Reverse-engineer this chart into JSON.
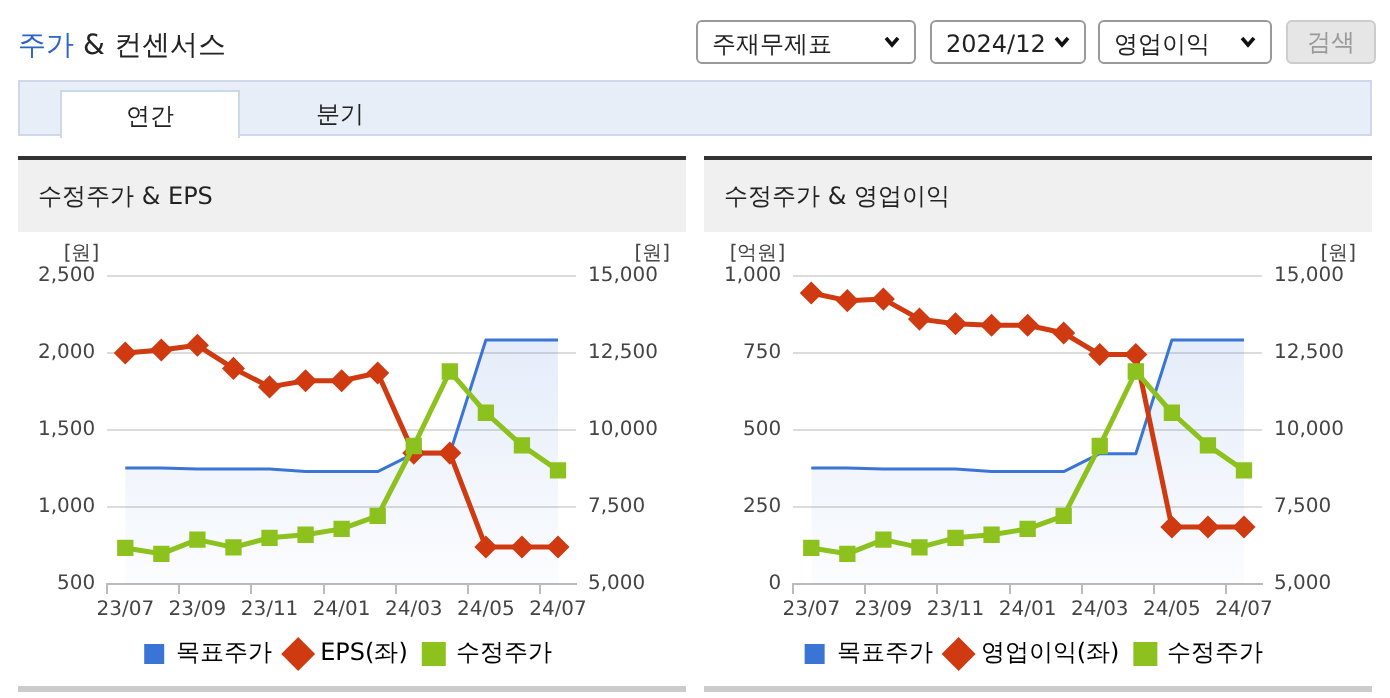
{
  "chart_data": [
    {
      "type": "other",
      "title": "주가 & 컨센서스",
      "annotations": [
        "주재무제표",
        "2024/12",
        "영업이익",
        "검색",
        "연간",
        "분기"
      ]
    },
    {
      "type": "line",
      "title": "수정주가 & EPS",
      "ylabel": "[원]",
      "y2label": "[원]",
      "categories": [
        "23/07",
        null,
        "23/09",
        null,
        "23/11",
        null,
        "24/01",
        null,
        "24/03",
        null,
        "24/05",
        null,
        "24/07"
      ],
      "series": [
        {
          "name": "목표주가",
          "type": "area",
          "axis": "y2",
          "color": "#3a75d6",
          "marker": "none",
          "values": [
            8770,
            8770,
            8730,
            8730,
            8730,
            8650,
            8650,
            8650,
            9230,
            9230,
            12920,
            12920,
            12920
          ]
        },
        {
          "name": "EPS(좌)",
          "type": "line",
          "color": "#d03a10",
          "marker": "diamond",
          "values": [
            2000,
            2020,
            2050,
            1900,
            1780,
            1820,
            1820,
            1870,
            1350,
            1350,
            740,
            740,
            740
          ]
        },
        {
          "name": "수정주가",
          "type": "line",
          "axis": "y2",
          "color": "#8cc11e",
          "marker": "square",
          "values": [
            6170,
            5980,
            6440,
            6190,
            6500,
            6600,
            6790,
            7210,
            9480,
            11900,
            10560,
            9500,
            8690
          ]
        }
      ],
      "ylim": [
        500,
        2500
      ],
      "yticks": [
        {
          "value": 500,
          "label": "500"
        },
        {
          "value": 1000,
          "label": "1,000"
        },
        {
          "value": 1500,
          "label": "1,500"
        },
        {
          "value": 2000,
          "label": "2,000"
        },
        {
          "value": 2500,
          "label": "2,500"
        }
      ],
      "y2lim": [
        5000,
        15000
      ],
      "y2ticks": [
        {
          "value": 5000,
          "label": "5,000"
        },
        {
          "value": 7500,
          "label": "7,500"
        },
        {
          "value": 10000,
          "label": "10,000"
        },
        {
          "value": 12500,
          "label": "12,500"
        },
        {
          "value": 15000,
          "label": "15,000"
        }
      ],
      "grid": "y",
      "legend": "bottom"
    },
    {
      "type": "line",
      "title": "수정주가 & 영업이익",
      "ylabel": "[억원]",
      "y2label": "[원]",
      "categories": [
        "23/07",
        null,
        "23/09",
        null,
        "23/11",
        null,
        "24/01",
        null,
        "24/03",
        null,
        "24/05",
        null,
        "24/07"
      ],
      "series": [
        {
          "name": "목표주가",
          "type": "area",
          "axis": "y2",
          "color": "#3a75d6",
          "marker": "none",
          "values": [
            8770,
            8770,
            8730,
            8730,
            8730,
            8650,
            8650,
            8650,
            9230,
            9230,
            12920,
            12920,
            12920
          ]
        },
        {
          "name": "영업이익(좌)",
          "type": "line",
          "color": "#d03a10",
          "marker": "diamond",
          "values": [
            945,
            920,
            925,
            860,
            845,
            840,
            840,
            815,
            745,
            745,
            185,
            185,
            185
          ]
        },
        {
          "name": "수정주가",
          "type": "line",
          "axis": "y2",
          "color": "#8cc11e",
          "marker": "square",
          "values": [
            6170,
            5980,
            6440,
            6190,
            6500,
            6600,
            6790,
            7210,
            9480,
            11900,
            10560,
            9500,
            8690
          ]
        }
      ],
      "ylim": [
        0,
        1000
      ],
      "yticks": [
        0,
        250,
        500,
        750,
        {
          "value": 1000,
          "label": "1,000"
        }
      ],
      "y2lim": [
        5000,
        15000
      ],
      "y2ticks": [
        {
          "value": 5000,
          "label": "5,000"
        },
        {
          "value": 7500,
          "label": "7,500"
        },
        {
          "value": 10000,
          "label": "10,000"
        },
        {
          "value": 12500,
          "label": "12,500"
        },
        {
          "value": 15000,
          "label": "15,000"
        }
      ],
      "grid": "y",
      "legend": "bottom"
    }
  ]
}
